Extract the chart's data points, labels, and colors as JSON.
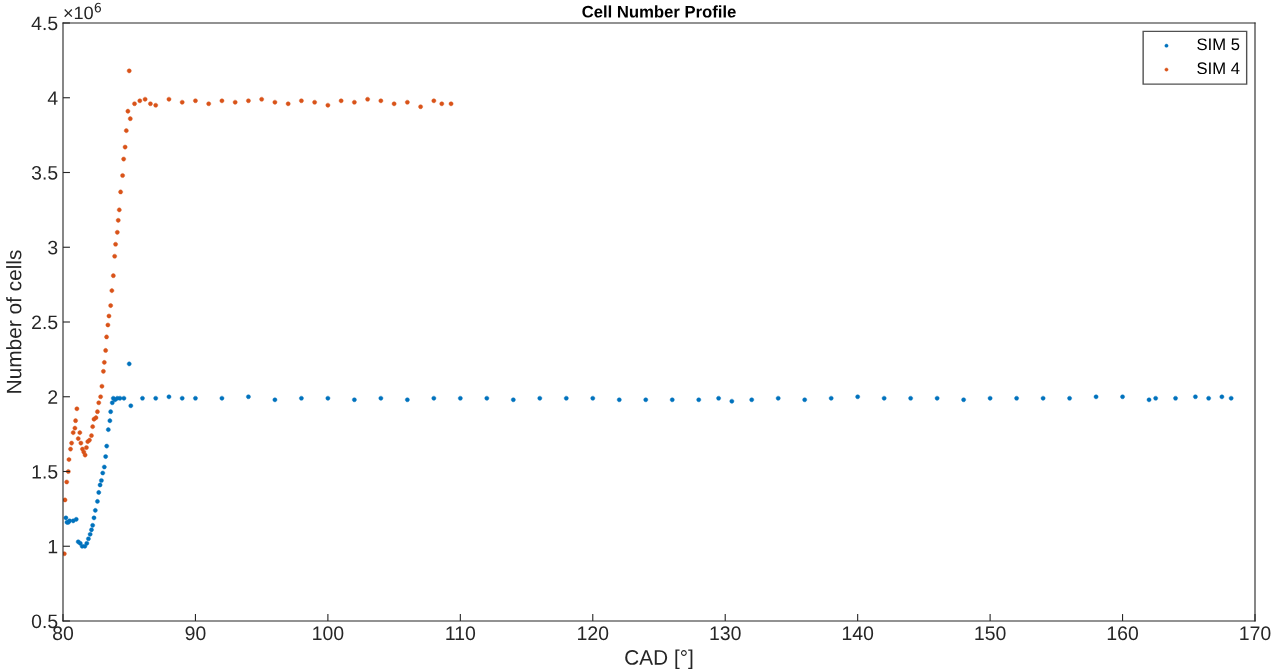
{
  "chart_data": {
    "type": "scatter",
    "title": "Cell Number Profile",
    "xlabel": "CAD [°]",
    "ylabel": "Number of cells",
    "annotations": [
      "×10$^{6}$"
    ],
    "xlim": [
      80,
      170
    ],
    "xticks": [
      80,
      90,
      100,
      110,
      120,
      130,
      140,
      150,
      160,
      170
    ],
    "ylim": [
      0.5,
      4.5
    ],
    "yticks": [
      0.5,
      1,
      1.5,
      2,
      2.5,
      3,
      3.5,
      4,
      4.5
    ],
    "grid": false,
    "legend": "top right",
    "marker": "circle",
    "series": [
      {
        "name": "SIM 5",
        "color": "#0072bd",
        "x": [
          80.22,
          80.3,
          80.4,
          80.5,
          80.77,
          81.0,
          81.15,
          81.3,
          81.45,
          81.65,
          81.8,
          81.92,
          82.05,
          82.15,
          82.24,
          82.34,
          82.44,
          82.6,
          82.7,
          82.8,
          82.9,
          83.0,
          83.12,
          83.22,
          83.3,
          83.42,
          83.54,
          83.6,
          83.72,
          83.8,
          83.93,
          84.1,
          84.3,
          84.6,
          85.0,
          85.12,
          86,
          87,
          88,
          89,
          90,
          92,
          94,
          96,
          98,
          100,
          102,
          104,
          106,
          108,
          110,
          112,
          114,
          116,
          118,
          120,
          122,
          124,
          126,
          128,
          129.5,
          130.5,
          132,
          134,
          136,
          138,
          140,
          142,
          144,
          146,
          148,
          150,
          152,
          154,
          156,
          158,
          160,
          162,
          162.5,
          164,
          165.5,
          166.5,
          167.5,
          168.2
        ],
        "values": [
          1.19,
          1.16,
          1.16,
          1.17,
          1.17,
          1.18,
          1.03,
          1.02,
          1.0,
          1.0,
          1.02,
          1.05,
          1.08,
          1.11,
          1.14,
          1.19,
          1.24,
          1.3,
          1.36,
          1.41,
          1.44,
          1.49,
          1.53,
          1.6,
          1.67,
          1.78,
          1.84,
          1.9,
          1.96,
          1.99,
          1.98,
          1.99,
          1.99,
          1.99,
          2.22,
          1.94,
          1.99,
          1.99,
          2.0,
          1.99,
          1.99,
          1.99,
          2.0,
          1.98,
          1.99,
          1.99,
          1.98,
          1.99,
          1.98,
          1.99,
          1.99,
          1.99,
          1.98,
          1.99,
          1.99,
          1.99,
          1.98,
          1.98,
          1.98,
          1.98,
          1.99,
          1.97,
          1.98,
          1.99,
          1.98,
          1.99,
          2.0,
          1.99,
          1.99,
          1.99,
          1.98,
          1.99,
          1.99,
          1.99,
          1.99,
          2.0,
          2.0,
          1.98,
          1.99,
          1.99,
          2.0,
          1.99,
          2.0,
          1.99
        ]
      },
      {
        "name": "SIM 4",
        "color": "#d95319",
        "x": [
          80.1,
          80.15,
          80.28,
          80.4,
          80.45,
          80.57,
          80.65,
          80.77,
          80.9,
          80.95,
          81.05,
          81.15,
          81.27,
          81.35,
          81.47,
          81.57,
          81.67,
          81.77,
          81.87,
          82.0,
          82.15,
          82.24,
          82.34,
          82.49,
          82.6,
          82.7,
          82.84,
          82.94,
          83.05,
          83.12,
          83.22,
          83.29,
          83.39,
          83.47,
          83.6,
          83.69,
          83.8,
          83.9,
          83.97,
          84.1,
          84.17,
          84.25,
          84.35,
          84.5,
          84.58,
          84.69,
          84.78,
          84.9,
          85.0,
          85.08,
          85.4,
          85.8,
          86.2,
          86.6,
          87,
          88,
          89,
          90,
          91,
          92,
          93,
          94,
          95,
          96,
          97,
          98,
          99,
          100,
          101,
          102,
          103,
          104,
          105,
          106,
          107,
          108,
          108.6,
          109.3
        ],
        "values": [
          0.95,
          1.31,
          1.43,
          1.5,
          1.58,
          1.65,
          1.69,
          1.76,
          1.79,
          1.84,
          1.92,
          1.72,
          1.76,
          1.69,
          1.65,
          1.63,
          1.61,
          1.66,
          1.7,
          1.71,
          1.74,
          1.8,
          1.85,
          1.86,
          1.9,
          1.96,
          2.0,
          2.07,
          2.17,
          2.23,
          2.31,
          2.4,
          2.48,
          2.54,
          2.61,
          2.71,
          2.81,
          2.94,
          3.02,
          3.1,
          3.18,
          3.25,
          3.37,
          3.48,
          3.59,
          3.67,
          3.78,
          3.91,
          4.18,
          3.86,
          3.96,
          3.98,
          3.99,
          3.96,
          3.95,
          3.99,
          3.97,
          3.98,
          3.96,
          3.98,
          3.97,
          3.98,
          3.99,
          3.97,
          3.96,
          3.98,
          3.97,
          3.95,
          3.98,
          3.97,
          3.99,
          3.98,
          3.96,
          3.97,
          3.94,
          3.98,
          3.96,
          3.96
        ]
      }
    ]
  }
}
